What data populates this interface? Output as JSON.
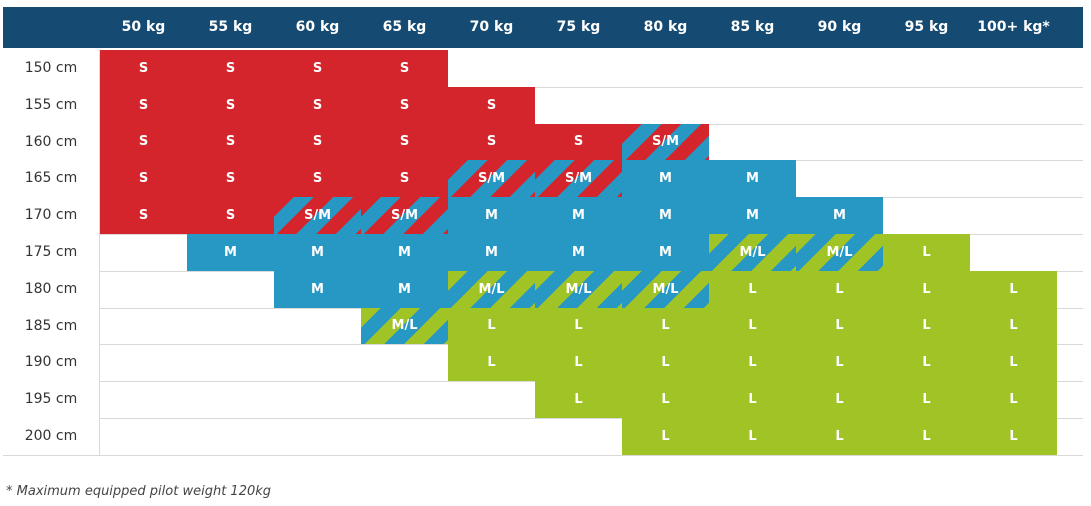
{
  "colors": {
    "header_bg": "#154a72",
    "S": "#d3252b",
    "M": "#2797c4",
    "L": "#a0c325"
  },
  "weights": [
    "50 kg",
    "55 kg",
    "60 kg",
    "65 kg",
    "70 kg",
    "75 kg",
    "80 kg",
    "85 kg",
    "90 kg",
    "95 kg",
    "100+ kg*"
  ],
  "heights": [
    "150 cm",
    "155 cm",
    "160 cm",
    "165 cm",
    "170 cm",
    "175 cm",
    "180 cm",
    "185 cm",
    "190 cm",
    "195 cm",
    "200 cm"
  ],
  "size_grid": [
    [
      "S",
      "S",
      "S",
      "S",
      "",
      "",
      "",
      "",
      "",
      "",
      ""
    ],
    [
      "S",
      "S",
      "S",
      "S",
      "S",
      "",
      "",
      "",
      "",
      "",
      ""
    ],
    [
      "S",
      "S",
      "S",
      "S",
      "S",
      "S",
      "S/M",
      "",
      "",
      "",
      ""
    ],
    [
      "S",
      "S",
      "S",
      "S",
      "S/M",
      "S/M",
      "M",
      "M",
      "",
      "",
      ""
    ],
    [
      "S",
      "S",
      "S/M",
      "S/M",
      "M",
      "M",
      "M",
      "M",
      "M",
      "",
      ""
    ],
    [
      "",
      "M",
      "M",
      "M",
      "M",
      "M",
      "M",
      "M/L",
      "M/L",
      "L",
      ""
    ],
    [
      "",
      "",
      "M",
      "M",
      "M/L",
      "M/L",
      "M/L",
      "L",
      "L",
      "L",
      "L"
    ],
    [
      "",
      "",
      "",
      "M/L",
      "L",
      "L",
      "L",
      "L",
      "L",
      "L",
      "L"
    ],
    [
      "",
      "",
      "",
      "",
      "L",
      "L",
      "L",
      "L",
      "L",
      "L",
      "L"
    ],
    [
      "",
      "",
      "",
      "",
      "",
      "L",
      "L",
      "L",
      "L",
      "L",
      "L"
    ],
    [
      "",
      "",
      "",
      "",
      "",
      "",
      "L",
      "L",
      "L",
      "L",
      "L"
    ]
  ],
  "footnote": "* Maximum equipped pilot weight 120kg"
}
